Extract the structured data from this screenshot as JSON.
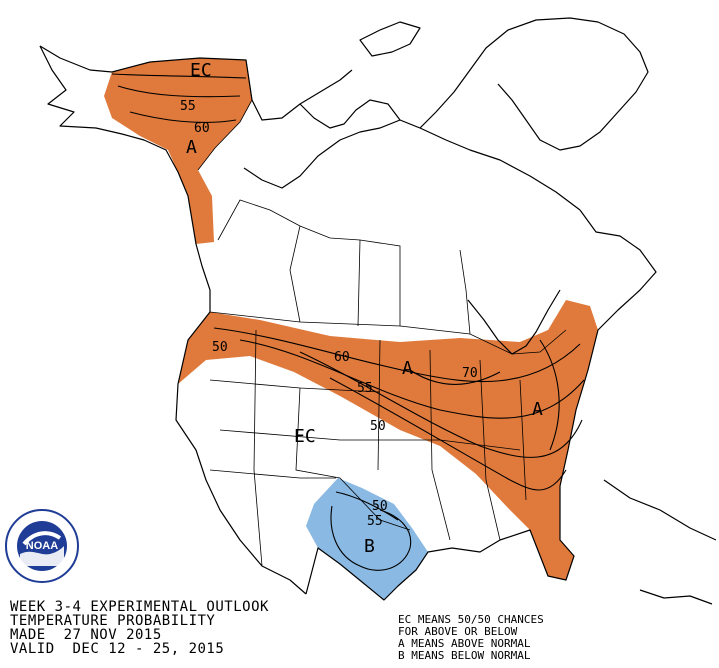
{
  "outlook": {
    "line1": "WEEK 3-4 EXPERIMENTAL OUTLOOK",
    "line2": "TEMPERATURE PROBABILITY",
    "line3": "MADE  27 NOV 2015",
    "line4": "VALID  DEC 12 - 25, 2015"
  },
  "legend": {
    "ec": "EC MEANS 50/50 CHANCES",
    "ec2": "FOR ABOVE OR BELOW",
    "a": "A MEANS ABOVE NORMAL",
    "b": "B MEANS BELOW NORMAL"
  },
  "logo": {
    "text": "NOAA"
  },
  "labels": {
    "ec_alaska": "EC",
    "alaska_55": "55",
    "alaska_60": "60",
    "alaska_a": "A",
    "west_50": "50",
    "mid_60": "60",
    "mid_55": "55",
    "mid_50": "50",
    "mid_a": "A",
    "east_70": "70",
    "east_a": "A",
    "ec_conus": "EC",
    "tx_50": "50",
    "tx_55": "55",
    "tx_b": "B"
  },
  "colors": {
    "above": "#e07a3c",
    "below": "#8ab9e3",
    "noaa_blue": "#1f3c96"
  }
}
